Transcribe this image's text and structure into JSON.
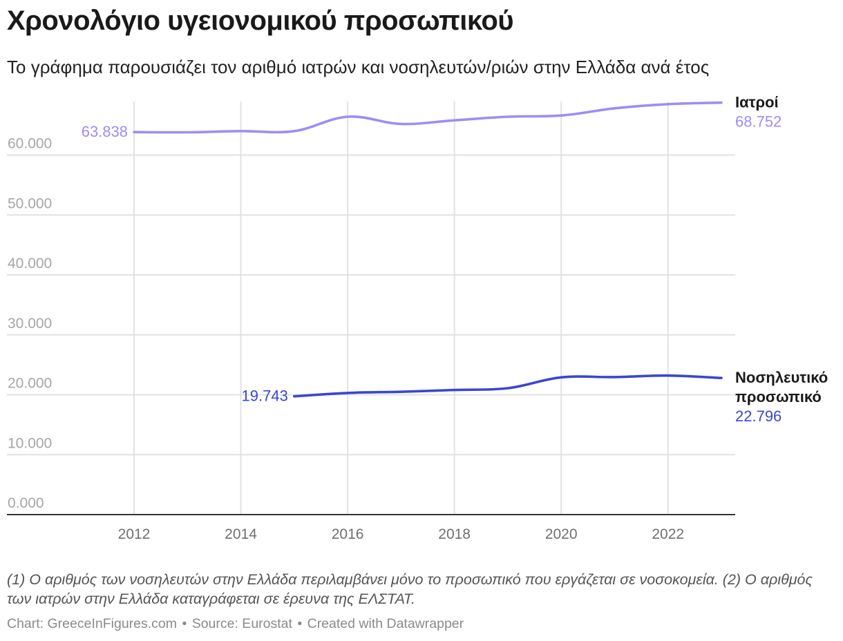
{
  "header": {
    "title": "Χρονολόγιο υγειονομικού προσωπικού",
    "subtitle": "Το γράφημα παρουσιάζει τον αριθμό ιατρών και νοσηλευτών/ριών στην Ελλάδα ανά έτος"
  },
  "chart_data": {
    "type": "line",
    "xlim": [
      2010.75,
      2023.4
    ],
    "ylim": [
      0,
      69000
    ],
    "grid": true,
    "x_ticks": [
      2012,
      2014,
      2016,
      2018,
      2020,
      2022
    ],
    "y_ticks": [
      0,
      10000,
      20000,
      30000,
      40000,
      50000,
      60000
    ],
    "y_tick_labels": [
      "0.000",
      "10.000",
      "20.000",
      "30.000",
      "40.000",
      "50.000",
      "60.000"
    ],
    "series": [
      {
        "name": "Ιατροί",
        "color": "#9b8ef5",
        "x": [
          2012,
          2013,
          2014,
          2015,
          2016,
          2017,
          2018,
          2019,
          2020,
          2021,
          2022,
          2023
        ],
        "y": [
          63838,
          63800,
          64000,
          64000,
          66400,
          65200,
          65800,
          66400,
          66600,
          67800,
          68500,
          68752
        ],
        "start_label": "63.838",
        "end_label": "68.752"
      },
      {
        "name": "Νοσηλευτικό προσωπικό",
        "name_lines": [
          "Νοσηλευτικό",
          "προσωπικό"
        ],
        "color": "#3a46d1",
        "x": [
          2015,
          2016,
          2017,
          2018,
          2019,
          2020,
          2021,
          2022,
          2023
        ],
        "y": [
          19743,
          20300,
          20500,
          20800,
          21100,
          22900,
          22950,
          23200,
          22796
        ],
        "start_label": "19.743",
        "end_label": "22.796"
      }
    ]
  },
  "notes": "(1) Ο αριθμός των νοσηλευτών στην Ελλάδα περιλαμβάνει μόνο το προσωπικό που εργάζεται σε νοσοκομεία. (2) Ο αριθμός των ιατρών στην Ελλάδα καταγράφεται σε έρευνα της ΕΛΣΤΑΤ.",
  "footer": {
    "chart_credit": "Chart: GreeceInFigures.com",
    "source": "Source: Eurostat",
    "created_with": "Created with Datawrapper",
    "separator": "•"
  }
}
